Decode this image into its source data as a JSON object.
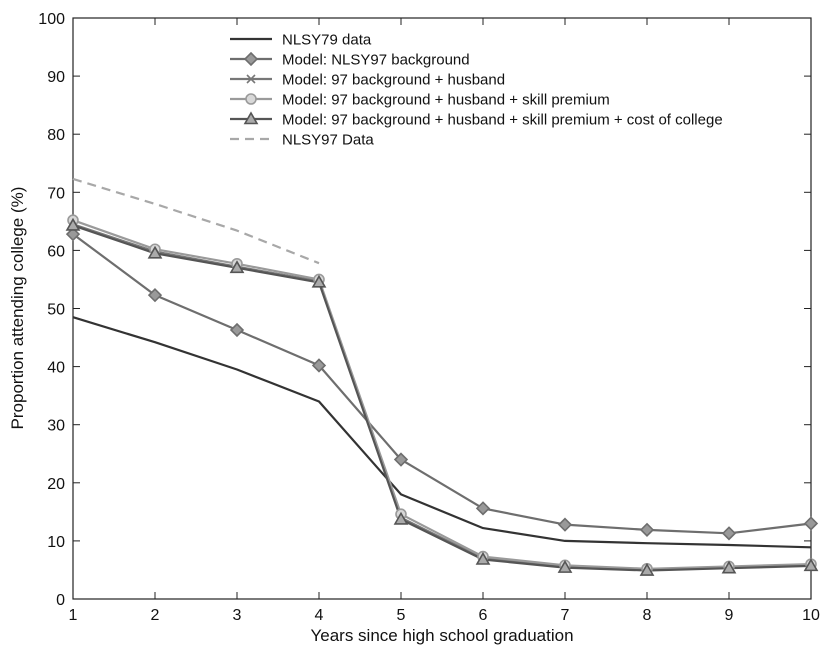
{
  "chart_data": {
    "type": "line",
    "xlabel": "Years since high school graduation",
    "ylabel": "Proportion attending college (%)",
    "xlim": [
      1,
      10
    ],
    "ylim": [
      0,
      100
    ],
    "xticks": [
      "1",
      "2",
      "3",
      "4",
      "5",
      "6",
      "7",
      "8",
      "9",
      "10"
    ],
    "yticks": [
      "0",
      "10",
      "20",
      "30",
      "40",
      "50",
      "60",
      "70",
      "80",
      "90",
      "100"
    ],
    "grid": false,
    "legend_position": "top-center",
    "series": [
      {
        "name": "NLSY79 data",
        "color": "#333333",
        "marker": "none",
        "dash": "solid",
        "x": [
          1,
          2,
          3,
          4,
          5,
          6,
          7,
          8,
          9,
          10
        ],
        "y": [
          48.5,
          44.2,
          39.5,
          34.0,
          18.0,
          12.2,
          10.0,
          9.6,
          9.3,
          8.9
        ]
      },
      {
        "name": "Model: NLSY97 background",
        "color": "#6e6e6e",
        "marker": "diamond",
        "dash": "solid",
        "x": [
          1,
          2,
          3,
          4,
          5,
          6,
          7,
          8,
          9,
          10
        ],
        "y": [
          62.8,
          52.3,
          46.3,
          40.2,
          24.0,
          15.6,
          12.8,
          11.9,
          11.3,
          13.0
        ]
      },
      {
        "name": "Model: 97 background + husband",
        "color": "#777777",
        "marker": "x",
        "dash": "solid",
        "x": [
          1,
          2,
          3,
          4,
          5,
          6,
          7,
          8,
          9,
          10
        ],
        "y": [
          64.5,
          59.8,
          57.2,
          54.7,
          14.0,
          7.0,
          5.5,
          5.0,
          5.4,
          5.8
        ]
      },
      {
        "name": "Model: 97 background + husband + skill premium",
        "color": "#9a9a9a",
        "marker": "circle",
        "dash": "solid",
        "x": [
          1,
          2,
          3,
          4,
          5,
          6,
          7,
          8,
          9,
          10
        ],
        "y": [
          65.2,
          60.2,
          57.7,
          55.0,
          14.6,
          7.3,
          5.8,
          5.2,
          5.6,
          6.0
        ]
      },
      {
        "name": "Model: 97 background + husband + skill premium + cost of college",
        "color": "#555555",
        "marker": "triangle",
        "dash": "solid",
        "x": [
          1,
          2,
          3,
          4,
          5,
          6,
          7,
          8,
          9,
          10
        ],
        "y": [
          64.3,
          59.5,
          57.0,
          54.5,
          13.7,
          6.8,
          5.4,
          4.9,
          5.3,
          5.7
        ]
      },
      {
        "name": "NLSY97 Data",
        "color": "#a8a8a8",
        "marker": "none",
        "dash": "dashed",
        "x": [
          1,
          2,
          3,
          4
        ],
        "y": [
          72.3,
          68.0,
          63.4,
          57.8
        ]
      }
    ]
  }
}
